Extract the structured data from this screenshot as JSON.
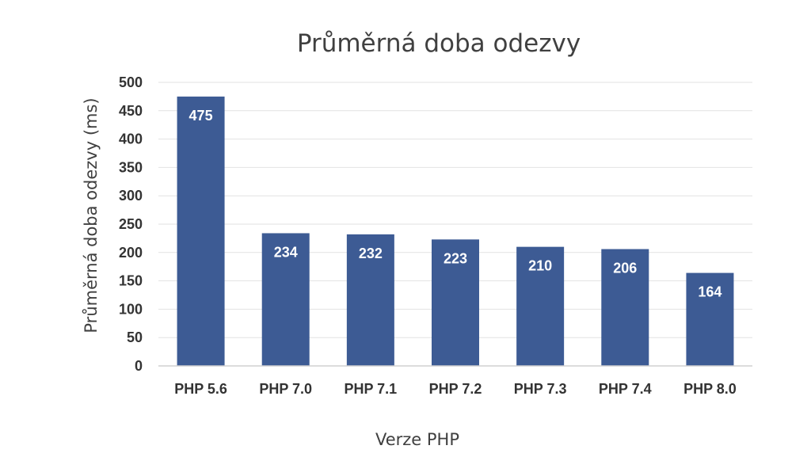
{
  "chart_data": {
    "type": "bar",
    "title": "Průměrná doba odezvy",
    "xlabel": "Verze PHP",
    "ylabel": "Průměrná doba odezvy (ms)",
    "categories": [
      "PHP 5.6",
      "PHP 7.0",
      "PHP 7.1",
      "PHP 7.2",
      "PHP 7.3",
      "PHP 7.4",
      "PHP 8.0"
    ],
    "values": [
      475,
      234,
      232,
      223,
      210,
      206,
      164
    ],
    "ylim": [
      0,
      500
    ],
    "yticks": [
      0,
      50,
      100,
      150,
      200,
      250,
      300,
      350,
      400,
      450,
      500
    ],
    "grid": true,
    "legend": "none",
    "bar_color": "#3d5b94",
    "data_label_color": "#ffffff",
    "text_color": "#404040"
  }
}
